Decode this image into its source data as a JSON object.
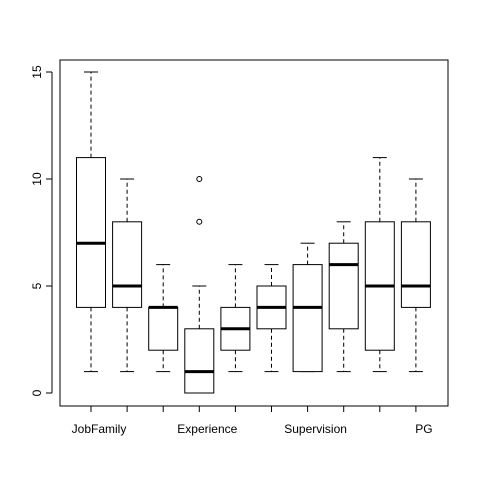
{
  "chart_data": {
    "type": "boxplot",
    "ylim": [
      0,
      15
    ],
    "yticks": [
      0,
      5,
      10,
      15
    ],
    "x_labels": [
      {
        "at": 1,
        "text": "JobFamily"
      },
      {
        "at": 4,
        "text": "Experience"
      },
      {
        "at": 7,
        "text": "Supervision"
      },
      {
        "at": 10,
        "text": "PG"
      }
    ],
    "boxes": [
      {
        "min": 1,
        "q1": 4,
        "median": 7,
        "q3": 11,
        "max": 15,
        "outliers": []
      },
      {
        "min": 1,
        "q1": 4,
        "median": 5,
        "q3": 8,
        "max": 10,
        "outliers": []
      },
      {
        "min": 1,
        "q1": 2,
        "median": 4,
        "q3": 4,
        "max": 6,
        "outliers": []
      },
      {
        "min": 0,
        "q1": 0,
        "median": 1,
        "q3": 3,
        "max": 5,
        "outliers": [
          8,
          10
        ]
      },
      {
        "min": 1,
        "q1": 2,
        "median": 3,
        "q3": 4,
        "max": 6,
        "outliers": []
      },
      {
        "min": 1,
        "q1": 3,
        "median": 4,
        "q3": 5,
        "max": 6,
        "outliers": []
      },
      {
        "min": 1,
        "q1": 1,
        "median": 4,
        "q3": 6,
        "max": 7,
        "outliers": []
      },
      {
        "min": 1,
        "q1": 3,
        "median": 6,
        "q3": 7,
        "max": 8,
        "outliers": []
      },
      {
        "min": 1,
        "q1": 2,
        "median": 5,
        "q3": 8,
        "max": 11,
        "outliers": []
      },
      {
        "min": 1,
        "q1": 4,
        "median": 5,
        "q3": 8,
        "max": 10,
        "outliers": []
      }
    ]
  }
}
